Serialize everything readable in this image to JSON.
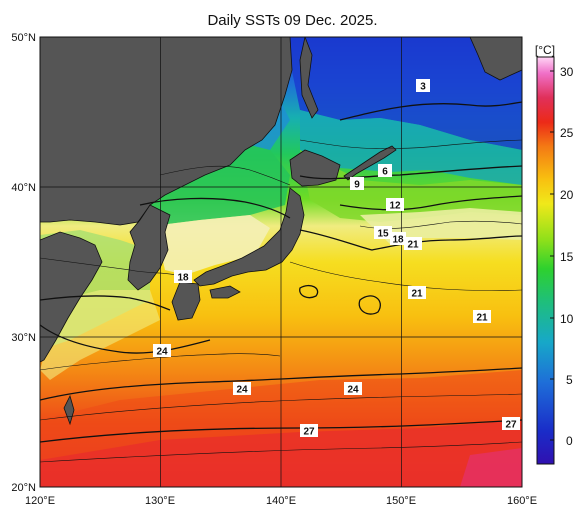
{
  "title": "Daily SSTs 09 Dec. 2025.",
  "map": {
    "lat_labels": [
      "50°N",
      "40°N",
      "30°N",
      "20°N"
    ],
    "lon_labels": [
      "120°E",
      "130°E",
      "140°E",
      "150°E",
      "160°E"
    ],
    "extent": {
      "lon": [
        120,
        160
      ],
      "lat": [
        20,
        50
      ]
    }
  },
  "colorbar": {
    "unit": "[°C]",
    "ticks": [
      "30",
      "25",
      "20",
      "15",
      "10",
      "5",
      "0"
    ],
    "range": [
      -2,
      32
    ],
    "colors": [
      "#3010b0",
      "#1a2cc8",
      "#1e6ed8",
      "#17a8c8",
      "#1fbf7a",
      "#2ed12e",
      "#8ee01a",
      "#f0e81a",
      "#f8c010",
      "#f47a14",
      "#ec2a18",
      "#e0305a",
      "#f070c8",
      "#ffd6f6"
    ]
  },
  "isotherm_labels": [
    "3",
    "6",
    "9",
    "12",
    "15",
    "18",
    "21",
    "18",
    "21",
    "21",
    "24",
    "24",
    "24",
    "27",
    "27"
  ],
  "land_color": "#555555"
}
